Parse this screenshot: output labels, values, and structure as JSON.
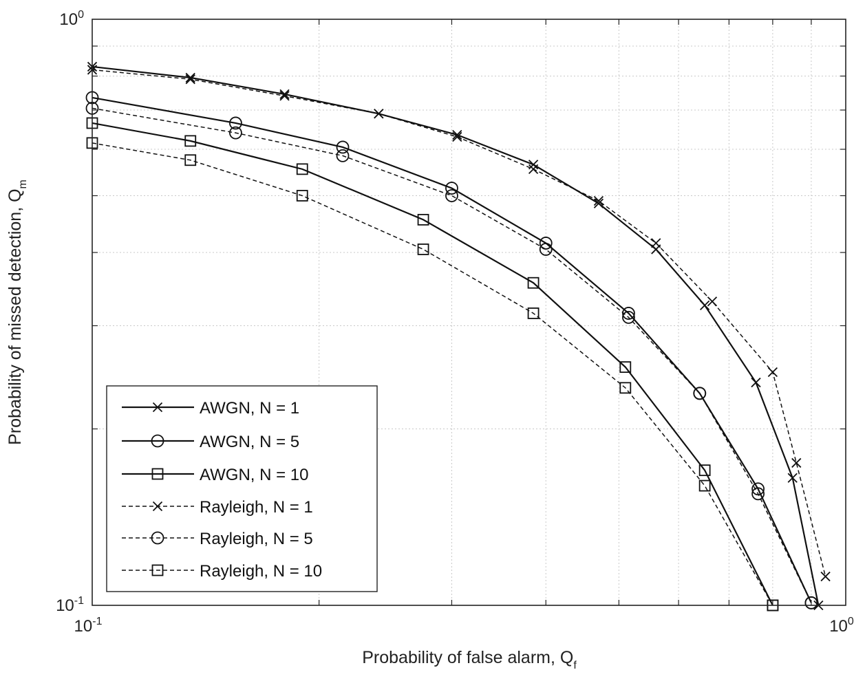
{
  "chart_data": {
    "type": "line",
    "x_scale": "log",
    "y_scale": "log",
    "xlim": [
      0.1,
      1
    ],
    "ylim": [
      0.1,
      1
    ],
    "grid": true,
    "legend_position": "bottom-left",
    "xlabel": "Probability of false alarm, Q",
    "xlabel_sub": "f",
    "ylabel": "Probability of missed detection, Q",
    "ylabel_sub": "m",
    "x_ticks": [
      {
        "base": "10",
        "exp": "-1",
        "value": 0.1
      },
      {
        "base": "10",
        "exp": "0",
        "value": 1
      }
    ],
    "y_ticks": [
      {
        "base": "10",
        "exp": "-1",
        "value": 0.1
      },
      {
        "base": "10",
        "exp": "0",
        "value": 1
      }
    ],
    "series": [
      {
        "name": "AWGN, N = 1",
        "line": "solid",
        "marker": "x",
        "x": [
          0.1,
          0.135,
          0.18,
          0.24,
          0.305,
          0.385,
          0.47,
          0.56,
          0.65,
          0.76,
          0.85,
          0.92
        ],
        "y": [
          0.83,
          0.795,
          0.745,
          0.69,
          0.635,
          0.565,
          0.485,
          0.405,
          0.325,
          0.24,
          0.165,
          0.1
        ]
      },
      {
        "name": "AWGN, N = 5",
        "line": "solid",
        "marker": "o",
        "x": [
          0.1,
          0.155,
          0.215,
          0.3,
          0.4,
          0.515,
          0.64,
          0.765,
          0.9
        ],
        "y": [
          0.735,
          0.665,
          0.605,
          0.515,
          0.415,
          0.315,
          0.23,
          0.158,
          0.101
        ]
      },
      {
        "name": "AWGN, N = 10",
        "line": "solid",
        "marker": "s",
        "x": [
          0.1,
          0.135,
          0.19,
          0.275,
          0.385,
          0.51,
          0.65,
          0.8
        ],
        "y": [
          0.665,
          0.62,
          0.555,
          0.455,
          0.355,
          0.255,
          0.17,
          0.1
        ]
      },
      {
        "name": "Rayleigh, N = 1",
        "line": "dashed",
        "marker": "x",
        "x": [
          0.1,
          0.135,
          0.18,
          0.24,
          0.305,
          0.385,
          0.47,
          0.56,
          0.665,
          0.8,
          0.86,
          0.94
        ],
        "y": [
          0.82,
          0.79,
          0.74,
          0.69,
          0.63,
          0.555,
          0.49,
          0.415,
          0.33,
          0.25,
          0.175,
          0.112
        ]
      },
      {
        "name": "Rayleigh, N = 5",
        "line": "dashed",
        "marker": "o",
        "x": [
          0.1,
          0.155,
          0.215,
          0.3,
          0.4,
          0.515,
          0.64,
          0.765,
          0.9
        ],
        "y": [
          0.705,
          0.64,
          0.585,
          0.5,
          0.405,
          0.31,
          0.23,
          0.155,
          0.101
        ]
      },
      {
        "name": "Rayleigh, N = 10",
        "line": "dashed",
        "marker": "s",
        "x": [
          0.1,
          0.135,
          0.19,
          0.275,
          0.385,
          0.51,
          0.65,
          0.8
        ],
        "y": [
          0.615,
          0.575,
          0.5,
          0.405,
          0.315,
          0.235,
          0.16,
          0.1
        ]
      }
    ]
  }
}
